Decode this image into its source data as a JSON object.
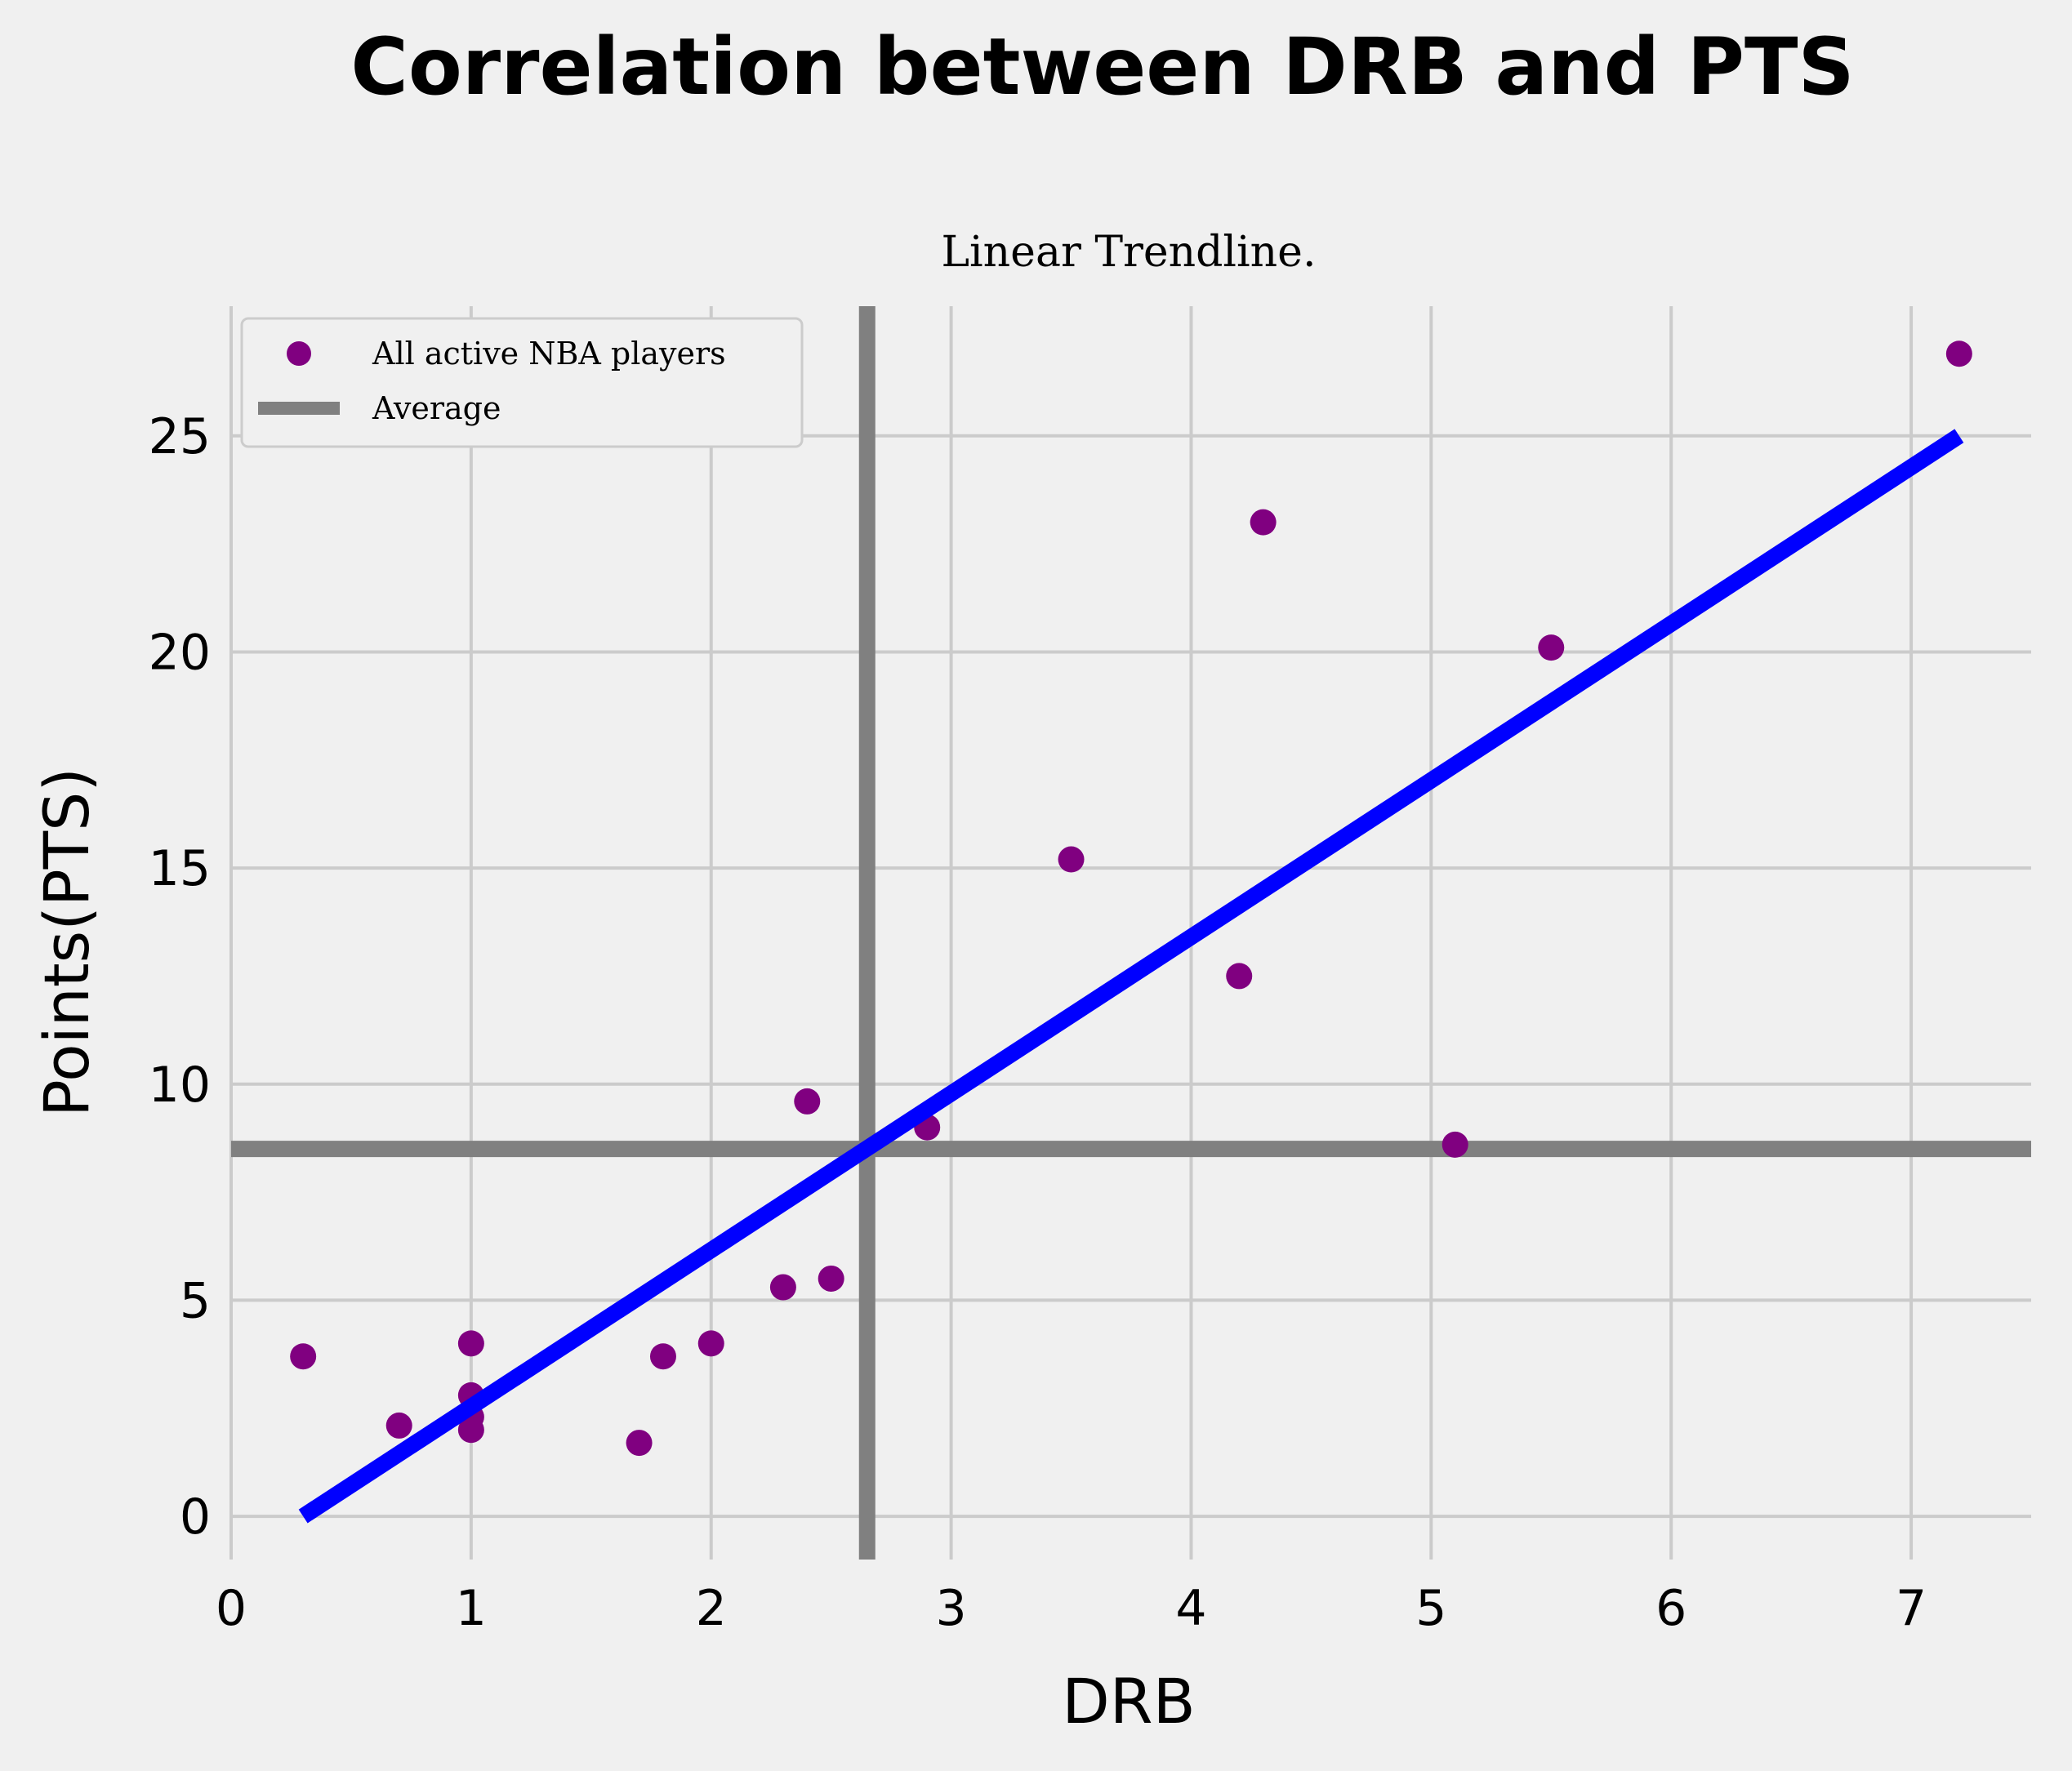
{
  "chart_data": {
    "type": "scatter",
    "title": "Correlation between DRB and PTS",
    "subtitle": "Linear Trendline.",
    "xlabel": "DRB",
    "ylabel": "Points(PTS)",
    "xlim": [
      0,
      7.5
    ],
    "ylim": [
      -1,
      28
    ],
    "xticks": [
      0,
      1,
      2,
      3,
      4,
      5,
      6,
      7
    ],
    "yticks": [
      0,
      5,
      10,
      15,
      20,
      25
    ],
    "grid": true,
    "legend_position": "top-left",
    "series": [
      {
        "name": "All active NBA players",
        "kind": "scatter",
        "color": "#800080",
        "points": [
          {
            "x": 0.3,
            "y": 3.7
          },
          {
            "x": 0.7,
            "y": 2.1
          },
          {
            "x": 1.0,
            "y": 4.0
          },
          {
            "x": 1.0,
            "y": 2.8
          },
          {
            "x": 1.0,
            "y": 2.3
          },
          {
            "x": 1.0,
            "y": 2.0
          },
          {
            "x": 1.7,
            "y": 1.7
          },
          {
            "x": 1.8,
            "y": 3.7
          },
          {
            "x": 2.0,
            "y": 4.0
          },
          {
            "x": 2.3,
            "y": 5.3
          },
          {
            "x": 2.4,
            "y": 9.6
          },
          {
            "x": 2.5,
            "y": 5.5
          },
          {
            "x": 2.9,
            "y": 9.0
          },
          {
            "x": 3.5,
            "y": 15.2
          },
          {
            "x": 4.2,
            "y": 12.5
          },
          {
            "x": 4.3,
            "y": 23.0
          },
          {
            "x": 5.1,
            "y": 8.6
          },
          {
            "x": 5.5,
            "y": 20.1
          },
          {
            "x": 7.2,
            "y": 26.9
          }
        ]
      },
      {
        "name": "Average",
        "kind": "reference-lines",
        "color": "#808080",
        "x_mean": 2.65,
        "y_mean": 8.5
      },
      {
        "kind": "trendline",
        "color": "#0000ff",
        "points": [
          {
            "x": 0.3,
            "y": 0.0
          },
          {
            "x": 7.2,
            "y": 25.0
          }
        ]
      }
    ]
  }
}
